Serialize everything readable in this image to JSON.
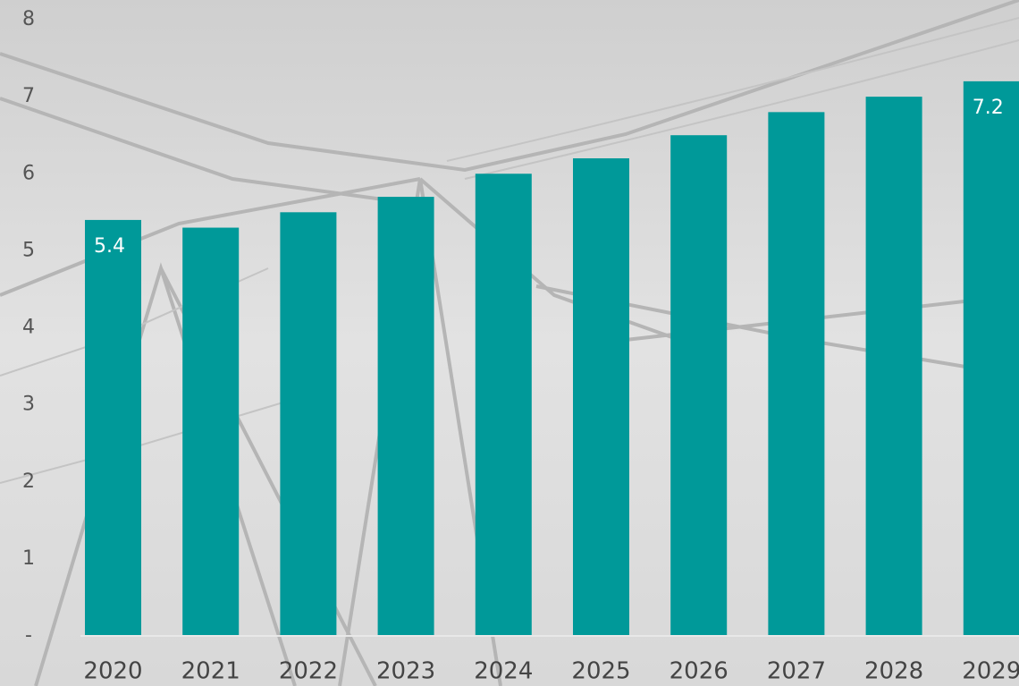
{
  "chart_data": {
    "type": "bar",
    "categories": [
      "2020",
      "2021",
      "2022",
      "2023",
      "2024",
      "2025",
      "2026",
      "2027",
      "2028",
      "2029"
    ],
    "values": [
      5.4,
      5.3,
      5.5,
      5.7,
      6.0,
      6.2,
      6.5,
      6.8,
      7.0,
      7.2
    ],
    "value_labels": [
      "5.4",
      null,
      null,
      null,
      null,
      null,
      null,
      null,
      null,
      "7.2"
    ],
    "color": "#009999",
    "ylim": [
      0,
      8
    ],
    "yticks": [
      {
        "value": 0,
        "label": "-"
      },
      1,
      2,
      3,
      4,
      5,
      6,
      7,
      8
    ],
    "grid": false
  }
}
